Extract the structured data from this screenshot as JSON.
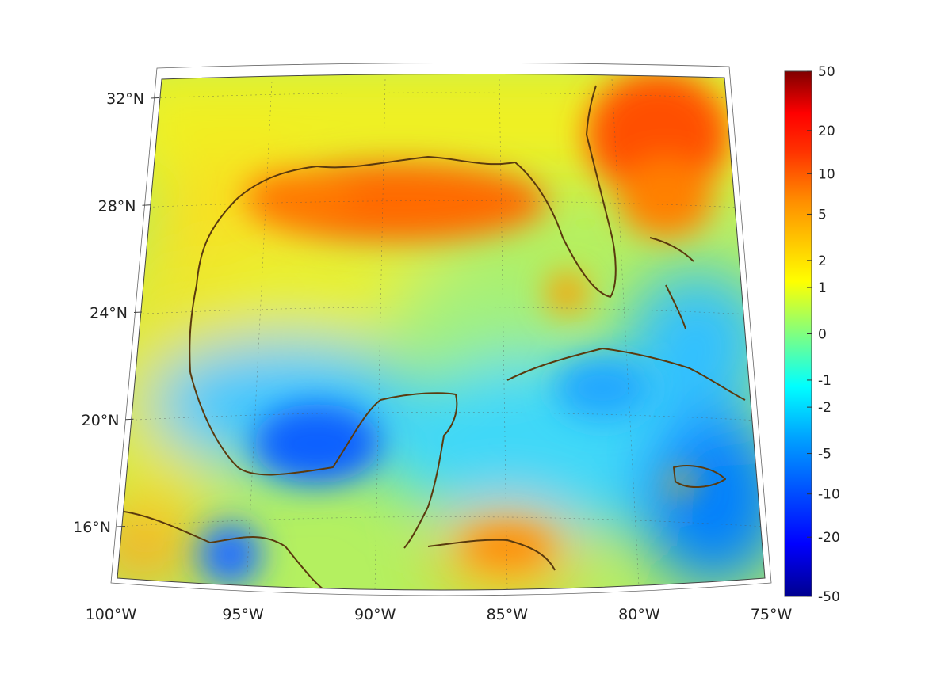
{
  "map": {
    "projection": "conic",
    "lon_range": [
      -100,
      -75
    ],
    "lat_range": [
      14,
      33
    ],
    "field_colormap": "jet",
    "coastline_color": "#5a3a0e",
    "lat_labels": [
      {
        "lat": 32,
        "text": "32°N"
      },
      {
        "lat": 28,
        "text": "28°N"
      },
      {
        "lat": 24,
        "text": "24°N"
      },
      {
        "lat": 20,
        "text": "20°N"
      },
      {
        "lat": 16,
        "text": "16°N"
      }
    ],
    "lon_labels": [
      {
        "lon": -100,
        "text": "100°W"
      },
      {
        "lon": -95,
        "text": "95°W"
      },
      {
        "lon": -90,
        "text": "90°W"
      },
      {
        "lon": -85,
        "text": "85°W"
      },
      {
        "lon": -80,
        "text": "80°W"
      },
      {
        "lon": -75,
        "text": "75°W"
      }
    ],
    "grid": true
  },
  "colorbar": {
    "colormap": "jet",
    "scale": "symmetric-log",
    "ticks": [
      {
        "value": 50,
        "text": "50"
      },
      {
        "value": 20,
        "text": "20"
      },
      {
        "value": 10,
        "text": "10"
      },
      {
        "value": 5,
        "text": "5"
      },
      {
        "value": 2,
        "text": "2"
      },
      {
        "value": 1,
        "text": "1"
      },
      {
        "value": 0,
        "text": "0"
      },
      {
        "value": -1,
        "text": "-1"
      },
      {
        "value": -2,
        "text": "-2"
      },
      {
        "value": -5,
        "text": "-5"
      },
      {
        "value": -10,
        "text": "-10"
      },
      {
        "value": -20,
        "text": "-20"
      },
      {
        "value": -50,
        "text": "-50"
      }
    ]
  }
}
